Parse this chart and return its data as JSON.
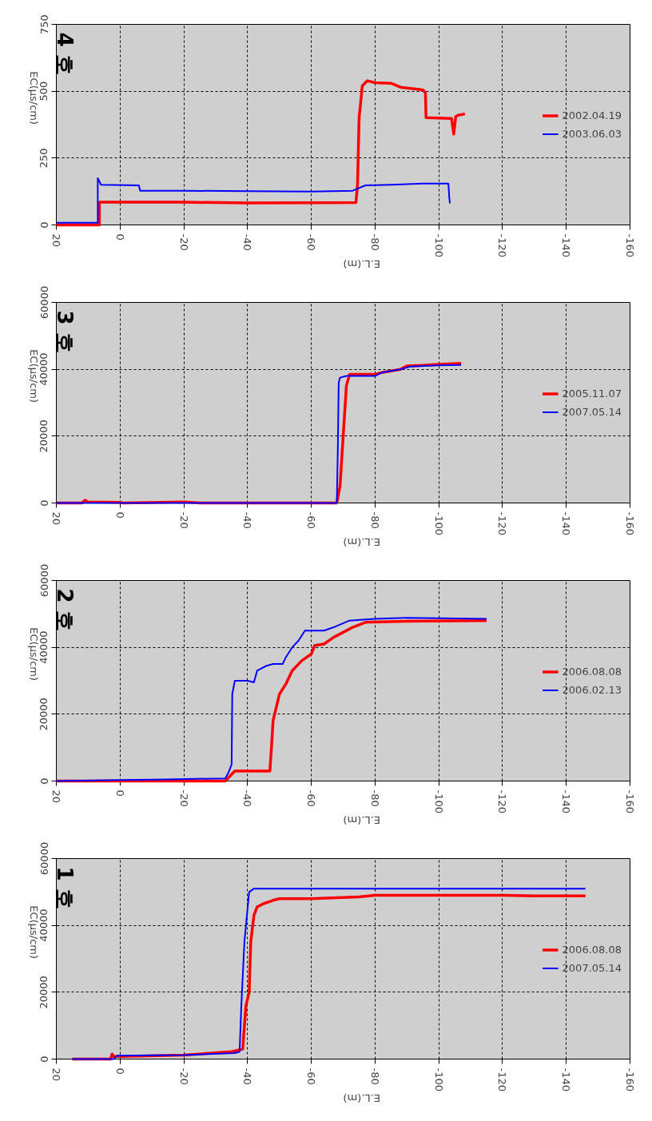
{
  "chart_data": [
    {
      "type": "line",
      "title": "4 호",
      "xlabel": "E.L.(m)",
      "ylabel": "EC(μs/cm)",
      "xlim": [
        20,
        -160
      ],
      "xticks": [
        20,
        0,
        -20,
        -40,
        -60,
        -80,
        -100,
        -120,
        -140,
        -160
      ],
      "ylim": [
        0,
        750
      ],
      "yticks": [
        0,
        250,
        500,
        750
      ],
      "grid": true,
      "legend": "right",
      "series": [
        {
          "name": "2002.04.19",
          "color": "#ff0000",
          "x": [
            20,
            6.5,
            6.5,
            -20,
            -40,
            -60,
            -74,
            -74.5,
            -75,
            -76,
            -77.6,
            -80,
            -85,
            -88,
            -95,
            -95.8,
            -96,
            -100,
            -104,
            -104.7,
            -105.3,
            -106,
            -108.2
          ],
          "values": [
            0,
            0,
            85,
            85,
            82,
            83,
            84,
            150,
            400,
            520,
            539,
            532,
            530,
            515,
            505,
            495,
            401,
            400,
            398,
            340,
            405,
            410,
            415
          ]
        },
        {
          "name": "2003.06.03",
          "color": "#0000ff",
          "x": [
            20,
            7,
            7,
            6,
            -5.9,
            -6.3,
            -20,
            -40,
            -60,
            -73,
            -77,
            -85,
            -95,
            -103,
            -103.3,
            -103.5
          ],
          "values": [
            8,
            8,
            175,
            150,
            148,
            128,
            128,
            126,
            125,
            128,
            148,
            150,
            155,
            155,
            100,
            80
          ]
        }
      ]
    },
    {
      "type": "line",
      "title": "3 호",
      "xlabel": "E.L.(m)",
      "ylabel": "EC(μs/cm)",
      "xlim": [
        20,
        -160
      ],
      "xticks": [
        20,
        0,
        -20,
        -40,
        -60,
        -80,
        -100,
        -120,
        -140,
        -160
      ],
      "ylim": [
        0,
        60000
      ],
      "yticks": [
        0,
        20000,
        40000,
        60000
      ],
      "grid": true,
      "legend": "right",
      "series": [
        {
          "name": "2005.11.07",
          "color": "#ff0000",
          "x": [
            20,
            12,
            11,
            10,
            0,
            -1,
            -20,
            -25,
            -68,
            -69,
            -70,
            -71,
            -72,
            -80,
            -82,
            -85,
            -88,
            -90,
            -95,
            -100,
            -107
          ],
          "values": [
            0,
            0,
            800,
            300,
            200,
            0,
            300,
            0,
            0,
            5000,
            20000,
            35000,
            38500,
            38500,
            39000,
            39500,
            40000,
            41000,
            41200,
            41500,
            41800
          ]
        },
        {
          "name": "2007.05.14",
          "color": "#0000ff",
          "x": [
            20,
            -68,
            -68.3,
            -68.6,
            -69,
            -71,
            -80,
            -82,
            -88,
            -91,
            -100,
            -107
          ],
          "values": [
            0,
            0,
            15000,
            36000,
            37500,
            38000,
            38000,
            39000,
            40000,
            40800,
            41200,
            41300
          ]
        }
      ]
    },
    {
      "type": "line",
      "title": "2 호",
      "xlabel": "E.L.(m)",
      "ylabel": "EC(μs/cm)",
      "xlim": [
        20,
        -160
      ],
      "xticks": [
        20,
        0,
        -20,
        -40,
        -60,
        -80,
        -100,
        -120,
        -140,
        -160
      ],
      "ylim": [
        0,
        60000
      ],
      "yticks": [
        0,
        20000,
        40000,
        60000
      ],
      "grid": true,
      "legend": "right",
      "series": [
        {
          "name": "2006.08.08",
          "color": "#ff0000",
          "x": [
            20,
            -33,
            -34.5,
            -36,
            -47,
            -47.5,
            -48,
            -49,
            -50,
            -52,
            -54,
            -57,
            -60,
            -61,
            -64,
            -67,
            -70,
            -73,
            -77,
            -90,
            -115
          ],
          "values": [
            0,
            0,
            1500,
            3000,
            3000,
            10000,
            18000,
            22000,
            26000,
            29000,
            33000,
            36000,
            38000,
            40500,
            41000,
            43000,
            44500,
            46000,
            47500,
            47800,
            48000
          ]
        },
        {
          "name": "2006.02.13",
          "color": "#0000ff",
          "x": [
            20,
            0,
            -15,
            -33,
            -34,
            -35,
            -35.2,
            -36,
            -40,
            -42,
            -43,
            -46,
            -48,
            -51,
            -52,
            -54,
            -56,
            -58,
            -64,
            -67,
            -72,
            -80,
            -90,
            -115
          ],
          "values": [
            0,
            300,
            500,
            800,
            2500,
            5000,
            26000,
            30000,
            30000,
            29500,
            33000,
            34500,
            35000,
            35000,
            37000,
            40000,
            42000,
            45000,
            45000,
            46000,
            48000,
            48500,
            48800,
            48500
          ]
        }
      ]
    },
    {
      "type": "line",
      "title": "1 호",
      "xlabel": "E.L.(m)",
      "ylabel": "EC(μs/cm)",
      "xlim": [
        20,
        -160
      ],
      "xticks": [
        20,
        0,
        -20,
        -40,
        -60,
        -80,
        -100,
        -120,
        -140,
        -160
      ],
      "ylim": [
        0,
        60000
      ],
      "yticks": [
        0,
        20000,
        40000,
        60000
      ],
      "grid": true,
      "legend": "right",
      "series": [
        {
          "name": "2006.08.08",
          "color": "#ff0000",
          "x": [
            15,
            3,
            2.5,
            2,
            0,
            -20,
            -35,
            -38.5,
            -39,
            -39.5,
            -40.5,
            -41,
            -42,
            -43,
            -45,
            -48,
            -50,
            -60,
            -75,
            -80,
            -120,
            -130,
            -146
          ],
          "values": [
            0,
            0,
            1500,
            800,
            800,
            1200,
            2200,
            3000,
            10000,
            16000,
            20000,
            35000,
            43000,
            45500,
            46500,
            47500,
            48000,
            48000,
            48500,
            49000,
            49000,
            48800,
            48800
          ]
        },
        {
          "name": "2007.05.14",
          "color": "#0000ff",
          "x": [
            15,
            2,
            1,
            -20,
            -36,
            -37.5,
            -38,
            -39,
            -40,
            -40.5,
            -42,
            -70,
            -146
          ],
          "values": [
            0,
            0,
            1000,
            1200,
            1800,
            2200,
            15000,
            35000,
            45000,
            50000,
            51000,
            51000,
            51000
          ]
        }
      ]
    }
  ]
}
